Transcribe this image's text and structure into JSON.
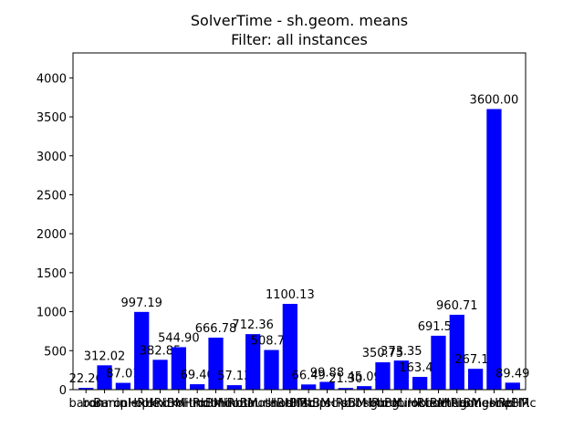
{
  "chart_data": {
    "type": "bar",
    "title": "SolverTime - sh.geom. means",
    "subtitle": "Filter: all instances",
    "categories": [
      "baron",
      "bonmin",
      "BaronHRb",
      "cplexHRb",
      "cplexBM",
      "knitroHRb",
      "knitroBM",
      "lindoHRb",
      "lindoBM",
      "minotaurHRb",
      "minotaurBM",
      "shotHRb",
      "shotBM",
      "scipHRb",
      "scipBM",
      "sbbHRb",
      "sbbBM",
      "gurobiHRb",
      "gurobiBM",
      "octerHRb",
      "octerBM",
      "antigoneHRb",
      "antigoneBM",
      "scipHRc"
    ],
    "values": [
      22.26,
      312.02,
      87.01,
      997.19,
      382.85,
      544.9,
      69.4,
      666.78,
      57.13,
      712.36,
      508.71,
      1100.13,
      66.49,
      99.88,
      21.3,
      45.09,
      350.75,
      373.35,
      163.48,
      691.56,
      960.71,
      267.14,
      3600,
      89.49
    ],
    "value_labels": [
      "22.26",
      "312.02",
      "87.01",
      "997.19",
      "382.85",
      "544.90",
      "69.40",
      "666.78",
      "57.13",
      "712.36",
      "508.71",
      "1100.13",
      "66.49",
      "99.88",
      "21.30",
      "45.09",
      "350.75",
      "373.35",
      "163.48",
      "691.56",
      "960.71",
      "267.14",
      "3600.00",
      "89.49"
    ],
    "color": "#0000ff",
    "ylim": [
      0,
      4320
    ],
    "yticks": [
      0,
      500,
      1000,
      1500,
      2000,
      2500,
      3000,
      3500,
      4000
    ]
  }
}
